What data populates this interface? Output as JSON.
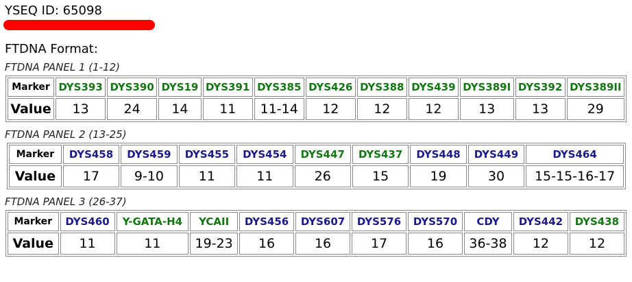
{
  "header": {
    "yseq_id": "YSEQ ID: 65098",
    "format": "FTDNA Format:"
  },
  "panels": [
    {
      "title": "FTDNA PANEL 1 (1-12)",
      "marker_label": "Marker",
      "value_label": "Value",
      "markers": [
        {
          "name": "DYS393",
          "color": "#117711"
        },
        {
          "name": "DYS390",
          "color": "#117711"
        },
        {
          "name": "DYS19",
          "color": "#117711"
        },
        {
          "name": "DYS391",
          "color": "#117711"
        },
        {
          "name": "DYS385",
          "color": "#117711"
        },
        {
          "name": "DYS426",
          "color": "#117711"
        },
        {
          "name": "DYS388",
          "color": "#117711"
        },
        {
          "name": "DYS439",
          "color": "#117711"
        },
        {
          "name": "DYS389I",
          "color": "#117711"
        },
        {
          "name": "DYS392",
          "color": "#117711"
        },
        {
          "name": "DYS389II",
          "color": "#117711"
        }
      ],
      "values": [
        13,
        24,
        14,
        11,
        "11-14",
        12,
        12,
        12,
        13,
        13,
        29
      ]
    },
    {
      "title": "FTDNA PANEL 2 (13-25)",
      "marker_label": "Marker",
      "value_label": "Value",
      "markers": [
        {
          "name": "DYS458",
          "color": "#1a1a8c"
        },
        {
          "name": "DYS459",
          "color": "#1a1a8c"
        },
        {
          "name": "DYS455",
          "color": "#1a1a8c"
        },
        {
          "name": "DYS454",
          "color": "#1a1a8c"
        },
        {
          "name": "DYS447",
          "color": "#117711"
        },
        {
          "name": "DYS437",
          "color": "#117711"
        },
        {
          "name": "DYS448",
          "color": "#1a1a8c"
        },
        {
          "name": "DYS449",
          "color": "#1a1a8c"
        },
        {
          "name": "DYS464",
          "color": "#1a1a8c"
        }
      ],
      "values": [
        17,
        "9-10",
        11,
        11,
        26,
        15,
        19,
        30,
        "15-15-16-17"
      ]
    },
    {
      "title": "FTDNA PANEL 3 (26-37)",
      "marker_label": "Marker",
      "value_label": "Value",
      "markers": [
        {
          "name": "DYS460",
          "color": "#1a1a8c"
        },
        {
          "name": "Y-GATA-H4",
          "color": "#117711"
        },
        {
          "name": "YCAII",
          "color": "#117711"
        },
        {
          "name": "DYS456",
          "color": "#1a1a8c"
        },
        {
          "name": "DYS607",
          "color": "#1a1a8c"
        },
        {
          "name": "DYS576",
          "color": "#1a1a8c"
        },
        {
          "name": "DYS570",
          "color": "#1a1a8c"
        },
        {
          "name": "CDY",
          "color": "#1a1a8c"
        },
        {
          "name": "DYS442",
          "color": "#1a1a8c"
        },
        {
          "name": "DYS438",
          "color": "#117711"
        }
      ],
      "values": [
        11,
        11,
        "19-23",
        16,
        16,
        17,
        16,
        "36-38",
        12,
        12
      ]
    }
  ]
}
